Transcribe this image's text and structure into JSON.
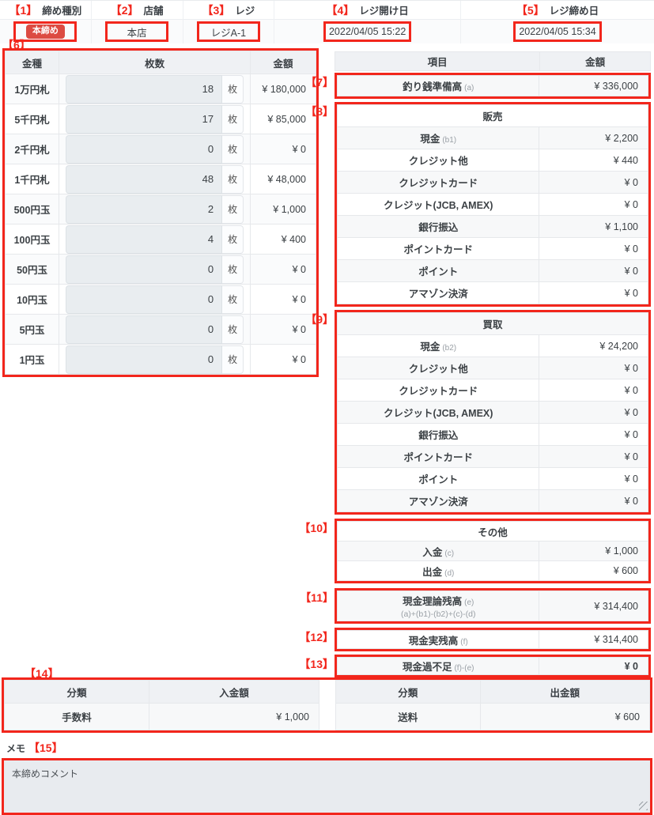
{
  "colors": {
    "annotation_red": "#f2261c",
    "badge_red": "#dc4b42",
    "stripe": "#f7f8f9",
    "header_bg": "#eff1f4"
  },
  "top_bar": {
    "columns": [
      {
        "annotation": "【1】",
        "label": "締め種別",
        "value": "本締め",
        "is_badge": true
      },
      {
        "annotation": "【2】",
        "label": "店舗",
        "value": "本店"
      },
      {
        "annotation": "【3】",
        "label": "レジ",
        "value": "レジA-1"
      },
      {
        "annotation": "【4】",
        "label": "レジ開け日",
        "value": "2022/04/05 15:22"
      },
      {
        "annotation": "【5】",
        "label": "レジ締め日",
        "value": "2022/04/05 15:34"
      }
    ]
  },
  "cash_count_table": {
    "annotation": "【6】",
    "headers": [
      "金種",
      "枚数",
      "金額"
    ],
    "unit": "枚",
    "rows": [
      {
        "denom": "1万円札",
        "count": "18",
        "amount": "¥ 180,000"
      },
      {
        "denom": "5千円札",
        "count": "17",
        "amount": "¥ 85,000"
      },
      {
        "denom": "2千円札",
        "count": "0",
        "amount": "¥ 0"
      },
      {
        "denom": "1千円札",
        "count": "48",
        "amount": "¥ 48,000"
      },
      {
        "denom": "500円玉",
        "count": "2",
        "amount": "¥ 1,000"
      },
      {
        "denom": "100円玉",
        "count": "4",
        "amount": "¥ 400"
      },
      {
        "denom": "50円玉",
        "count": "0",
        "amount": "¥ 0"
      },
      {
        "denom": "10円玉",
        "count": "0",
        "amount": "¥ 0"
      },
      {
        "denom": "5円玉",
        "count": "0",
        "amount": "¥ 0"
      },
      {
        "denom": "1円玉",
        "count": "0",
        "amount": "¥ 0"
      }
    ]
  },
  "summary": {
    "headers": [
      "項目",
      "金額"
    ],
    "groups": [
      {
        "annotation": "【7】",
        "rows": [
          {
            "label": "釣り銭準備高",
            "note": "(a)",
            "amount": "¥ 336,000"
          }
        ]
      },
      {
        "annotation": "【8】",
        "section": "販売",
        "rows": [
          {
            "label": "現金",
            "note": "(b1)",
            "amount": "¥ 2,200"
          },
          {
            "label": "クレジット他",
            "amount": "¥ 440"
          },
          {
            "label": "クレジットカード",
            "amount": "¥ 0"
          },
          {
            "label": "クレジット(JCB, AMEX)",
            "amount": "¥ 0"
          },
          {
            "label": "銀行振込",
            "amount": "¥ 1,100"
          },
          {
            "label": "ポイントカード",
            "amount": "¥ 0"
          },
          {
            "label": "ポイント",
            "amount": "¥ 0"
          },
          {
            "label": "アマゾン決済",
            "amount": "¥ 0"
          }
        ]
      },
      {
        "annotation": "【9】",
        "section": "買取",
        "rows": [
          {
            "label": "現金",
            "note": "(b2)",
            "amount": "¥ 24,200"
          },
          {
            "label": "クレジット他",
            "amount": "¥ 0"
          },
          {
            "label": "クレジットカード",
            "amount": "¥ 0"
          },
          {
            "label": "クレジット(JCB, AMEX)",
            "amount": "¥ 0"
          },
          {
            "label": "銀行振込",
            "amount": "¥ 0"
          },
          {
            "label": "ポイントカード",
            "amount": "¥ 0"
          },
          {
            "label": "ポイント",
            "amount": "¥ 0"
          },
          {
            "label": "アマゾン決済",
            "amount": "¥ 0"
          }
        ]
      },
      {
        "annotation": "【10】",
        "section": "その他",
        "rows": [
          {
            "label": "入金",
            "note": "(c)",
            "amount": "¥ 1,000"
          },
          {
            "label": "出金",
            "note": "(d)",
            "amount": "¥ 600"
          }
        ]
      },
      {
        "annotation": "【11】",
        "rows": [
          {
            "label": "現金理論残高",
            "note": "(e)",
            "formula": "(a)+(b1)-(b2)+(c)-(d)",
            "amount": "¥ 314,400"
          }
        ]
      },
      {
        "annotation": "【12】",
        "rows": [
          {
            "label": "現金実残高",
            "note": "(f)",
            "amount": "¥ 314,400"
          }
        ]
      },
      {
        "annotation": "【13】",
        "rows": [
          {
            "label": "現金過不足",
            "note": "(f)-(e)",
            "amount": "¥ 0",
            "bold": true
          }
        ]
      }
    ]
  },
  "bottom_tables": {
    "annotation": "【14】",
    "deposit": {
      "headers": [
        "分類",
        "入金額"
      ],
      "rows": [
        {
          "label": "手数料",
          "amount": "¥ 1,000"
        }
      ]
    },
    "withdrawal": {
      "headers": [
        "分類",
        "出金額"
      ],
      "rows": [
        {
          "label": "送料",
          "amount": "¥ 600"
        }
      ]
    }
  },
  "memo": {
    "label": "メモ",
    "annotation": "【15】",
    "value": "本締めコメント"
  }
}
